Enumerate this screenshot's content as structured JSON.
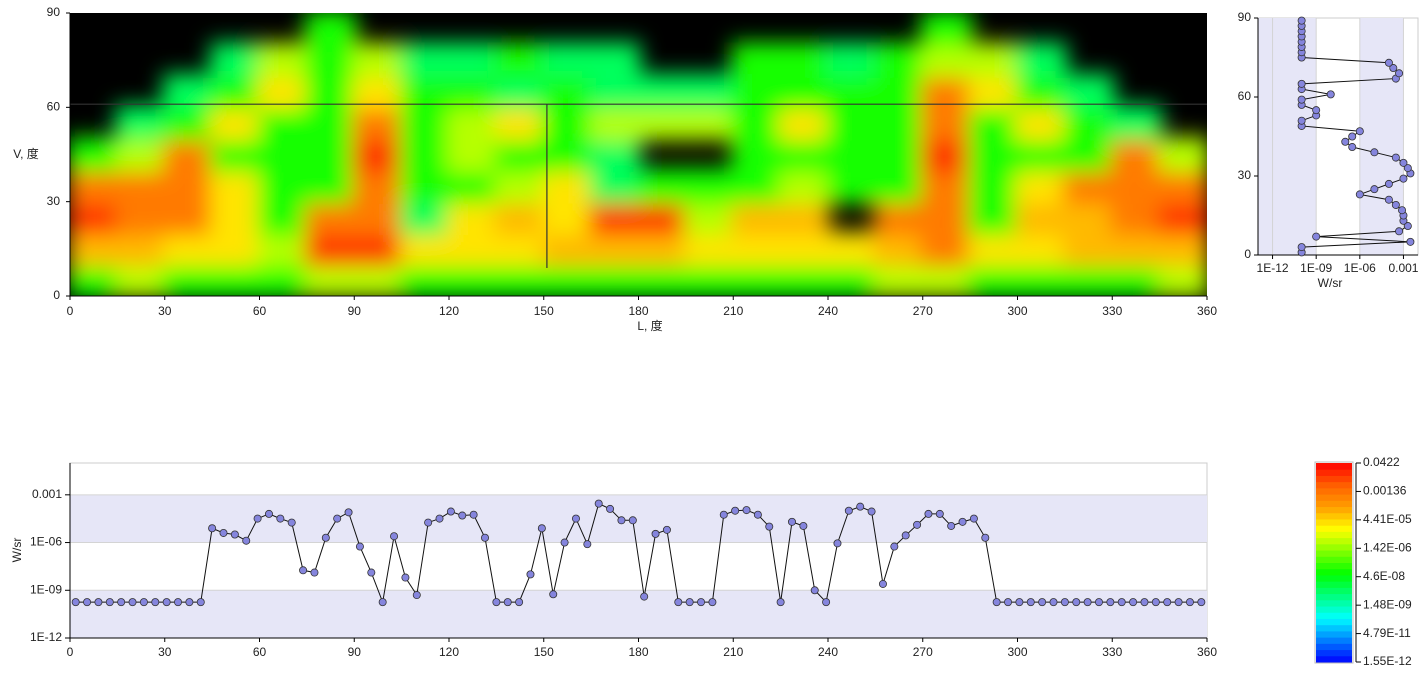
{
  "chart_data": [
    {
      "type": "heatmap",
      "x_label": "L, 度",
      "y_label": "V, 度",
      "xlim": [
        0,
        360
      ],
      "ylim": [
        0,
        90
      ],
      "xticks": [
        0,
        30,
        60,
        90,
        120,
        150,
        180,
        210,
        240,
        270,
        300,
        330,
        360
      ],
      "yticks": [
        0,
        30,
        60,
        90
      ],
      "crosshair": {
        "x": 151,
        "y": 61
      },
      "zlim": [
        1.55e-12,
        0.0422
      ],
      "log_z": true,
      "colors": [
        "#0000ff",
        "#0080ff",
        "#00ffff",
        "#00ff80",
        "#00ff00",
        "#80ff00",
        "#ffff00",
        "#ffa000",
        "#ff6000",
        "#ff0000"
      ],
      "colorbar_ticks": [
        {
          "value": 1.55e-12,
          "label": "1.55E-12"
        },
        {
          "value": 4.79e-11,
          "label": "4.79E-11"
        },
        {
          "value": 1.48e-09,
          "label": "1.48E-09"
        },
        {
          "value": 4.6e-08,
          "label": "4.6E-08"
        },
        {
          "value": 1.42e-06,
          "label": "1.42E-06"
        },
        {
          "value": 4.41e-05,
          "label": "4.41E-05"
        },
        0.00136,
        0.0422
      ],
      "z": [
        [
          1e-07,
          3e-06,
          1e-07,
          1e-07,
          1e-07,
          3e-06,
          3e-06,
          1e-07,
          1e-07,
          1e-07,
          1e-07,
          1e-07,
          1e-07,
          1e-07,
          1e-07,
          1e-07,
          1e-07,
          3e-06,
          3e-06,
          1e-07,
          1e-07,
          1e-07,
          1e-07,
          3e-06
        ],
        [
          0.0001,
          0.0001,
          3e-05,
          3e-05,
          3e-06,
          0.01,
          0.01,
          3e-05,
          3e-05,
          3e-05,
          0.0001,
          0.0001,
          0.0001,
          3e-05,
          3e-05,
          3e-05,
          3e-05,
          0.0001,
          0.001,
          3e-05,
          3e-05,
          0.0001,
          0.0001,
          0.0001
        ],
        [
          0.01,
          0.001,
          0.001,
          3e-05,
          1e-07,
          0.001,
          0.001,
          1e-08,
          3e-05,
          0.0001,
          3e-05,
          0.01,
          0.01,
          3e-06,
          0.0001,
          0.0001,
          null,
          0.001,
          0.001,
          1e-07,
          0.0001,
          0.0001,
          0.001,
          0.01
        ],
        [
          0.001,
          0.001,
          0.001,
          3e-05,
          1e-07,
          1e-07,
          0.001,
          1e-07,
          1e-07,
          3e-06,
          3e-05,
          1e-08,
          1e-07,
          1e-07,
          1e-07,
          3e-06,
          1e-07,
          1e-07,
          0.001,
          1e-07,
          3e-05,
          0.001,
          0.001,
          0.001
        ],
        [
          1e-07,
          3e-06,
          0.001,
          1e-07,
          1e-07,
          1e-07,
          0.01,
          1e-07,
          3e-06,
          1e-07,
          1e-07,
          1e-08,
          null,
          null,
          1e-07,
          1e-07,
          1e-07,
          1e-07,
          0.01,
          1e-07,
          1e-07,
          1e-07,
          0.001,
          3e-06
        ],
        [
          null,
          1e-08,
          1e-07,
          3e-05,
          1e-07,
          1e-07,
          0.001,
          1e-07,
          3e-06,
          3e-05,
          1e-07,
          3e-06,
          3e-06,
          3e-06,
          1e-07,
          3e-05,
          1e-07,
          1e-07,
          0.001,
          1e-07,
          3e-05,
          1e-07,
          1e-08,
          null
        ],
        [
          null,
          null,
          1e-08,
          1e-07,
          3e-05,
          1e-07,
          3e-05,
          1e-07,
          1e-07,
          1e-08,
          1e-07,
          1e-08,
          1e-08,
          1e-08,
          1e-07,
          1e-07,
          1e-07,
          1e-07,
          0.001,
          3e-05,
          1e-07,
          1e-08,
          null,
          null
        ],
        [
          null,
          null,
          null,
          1e-08,
          3e-06,
          1e-07,
          3e-06,
          1e-08,
          1e-08,
          1e-07,
          1e-08,
          1e-08,
          null,
          null,
          1e-07,
          1e-07,
          1e-08,
          1e-07,
          3e-06,
          3e-06,
          1e-08,
          null,
          null,
          null
        ],
        [
          null,
          null,
          null,
          null,
          null,
          1e-07,
          null,
          null,
          null,
          null,
          null,
          null,
          null,
          null,
          null,
          null,
          null,
          null,
          1e-07,
          null,
          null,
          null,
          null,
          null
        ]
      ]
    },
    {
      "type": "line",
      "y_label": "W/sr",
      "log_y": true,
      "color": "#8585dd",
      "band_color": "#e6e6f7",
      "xlim": [
        0,
        360
      ],
      "ylim": [
        1e-12,
        0.1
      ],
      "xticks": [
        0,
        30,
        60,
        90,
        120,
        150,
        180,
        210,
        240,
        270,
        300,
        330,
        360
      ],
      "yticks": [
        {
          "value": 1e-12,
          "label": "1E-12"
        },
        {
          "value": 1e-09,
          "label": "1E-09"
        },
        {
          "value": 1e-06,
          "label": "1E-06"
        },
        0.001
      ],
      "bands": [
        [
          1e-12,
          1e-09
        ],
        [
          1e-06,
          0.001
        ]
      ],
      "x": [
        1.8,
        5.4,
        9,
        12.6,
        16.2,
        19.8,
        23.4,
        27,
        30.6,
        34.2,
        37.8,
        41.4,
        45,
        48.6,
        52.2,
        55.8,
        59.4,
        63,
        66.6,
        70.2,
        73.8,
        77.4,
        81,
        84.6,
        88.2,
        91.8,
        95.4,
        99,
        102.6,
        106.2,
        109.8,
        113.4,
        117,
        120.6,
        124.2,
        127.8,
        131.4,
        135,
        138.6,
        142.2,
        145.8,
        149.4,
        153,
        156.6,
        160.2,
        163.8,
        167.4,
        171,
        174.6,
        178.2,
        181.8,
        185.4,
        189,
        192.6,
        196.2,
        199.8,
        203.4,
        207,
        210.6,
        214.2,
        217.8,
        221.4,
        225,
        228.6,
        232.2,
        235.8,
        239.4,
        243,
        246.6,
        250.2,
        253.8,
        257.4,
        261,
        264.6,
        268.2,
        271.8,
        275.4,
        279,
        282.6,
        286.2,
        289.8,
        293.4,
        297,
        300.6,
        304.2,
        307.8,
        311.4,
        315,
        318.6,
        322.2,
        325.8,
        329.4,
        333,
        336.6,
        340.2,
        343.8,
        347.4,
        351,
        354.6,
        358.2
      ],
      "values": [
        1.8e-10,
        1.8e-10,
        1.8e-10,
        1.8e-10,
        1.8e-10,
        1.8e-10,
        1.8e-10,
        1.8e-10,
        1.8e-10,
        1.8e-10,
        1.8e-10,
        1.8e-10,
        7.9e-06,
        4e-06,
        3.2e-06,
        1.3e-06,
        3.2e-05,
        6.3e-05,
        3.2e-05,
        1.8e-05,
        1.8e-08,
        1.3e-08,
        2e-06,
        3.2e-05,
        7.9e-05,
        5.6e-07,
        1.3e-08,
        1.8e-10,
        2.5e-06,
        6.3e-09,
        5e-10,
        1.8e-05,
        3.2e-05,
        8.9e-05,
        5e-05,
        5.6e-05,
        2e-06,
        1.8e-10,
        1.8e-10,
        1.8e-10,
        1e-08,
        7.9e-06,
        5.6e-10,
        1e-06,
        3.2e-05,
        7.9e-07,
        0.00028,
        0.00013,
        2.5e-05,
        2.5e-05,
        4e-10,
        3.5e-06,
        6.3e-06,
        1.8e-10,
        1.8e-10,
        1.8e-10,
        1.8e-10,
        5.6e-05,
        0.0001,
        0.00011,
        5.6e-05,
        1e-05,
        1.8e-10,
        2e-05,
        1.1e-05,
        1e-09,
        1.8e-10,
        8.9e-07,
        0.0001,
        0.00018,
        8.9e-05,
        2.5e-09,
        5.6e-07,
        2.8e-06,
        1.3e-05,
        6.3e-05,
        6.3e-05,
        1.1e-05,
        2e-05,
        3.2e-05,
        2e-06,
        1.8e-10,
        1.8e-10,
        1.8e-10,
        1.8e-10,
        1.8e-10,
        1.8e-10,
        1.8e-10,
        1.8e-10,
        1.8e-10,
        1.8e-10,
        1.8e-10,
        1.8e-10,
        1.8e-10,
        1.8e-10,
        1.8e-10,
        1.8e-10,
        1.8e-10,
        1.8e-10,
        1.8e-10
      ]
    },
    {
      "type": "profile",
      "x_label": "W/sr",
      "log_x": true,
      "color": "#8585dd",
      "band_color": "#e6e6f7",
      "xlim": [
        1e-13,
        0.01
      ],
      "ylim": [
        0,
        90
      ],
      "xticks": [
        {
          "value": 1e-12,
          "label": "1E-12"
        },
        {
          "value": 1e-09,
          "label": "1E-09"
        },
        {
          "value": 1e-06,
          "label": "1E-06"
        },
        0.001
      ],
      "yticks": [
        0,
        30,
        60,
        90
      ],
      "bands": [
        [
          1e-13,
          1e-09
        ],
        [
          1e-06,
          0.001
        ]
      ],
      "y": [
        1,
        3,
        5,
        7,
        9,
        11,
        13,
        15,
        17,
        19,
        21,
        23,
        25,
        27,
        29,
        31,
        33,
        35,
        37,
        39,
        41,
        43,
        45,
        47,
        49,
        51,
        53,
        55,
        57,
        59,
        61,
        63,
        65,
        67,
        69,
        71,
        73,
        75,
        77,
        79,
        81,
        83,
        85,
        87,
        89
      ],
      "values": [
        1e-10,
        1e-10,
        0.003,
        1e-09,
        0.0005,
        0.002,
        0.001,
        0.001,
        0.0008,
        0.0003,
        0.0001,
        1e-06,
        1e-05,
        0.0001,
        0.001,
        0.003,
        0.002,
        0.001,
        0.0003,
        1e-05,
        3e-07,
        1e-07,
        3e-07,
        1e-06,
        1e-10,
        1e-10,
        1e-09,
        1e-09,
        1e-10,
        1e-10,
        1e-08,
        1e-10,
        1e-10,
        0.0003,
        0.0005,
        0.0002,
        0.0001,
        1e-10,
        1e-10,
        1e-10,
        1e-10,
        1e-10,
        1e-10,
        1e-10,
        1e-10
      ]
    }
  ]
}
